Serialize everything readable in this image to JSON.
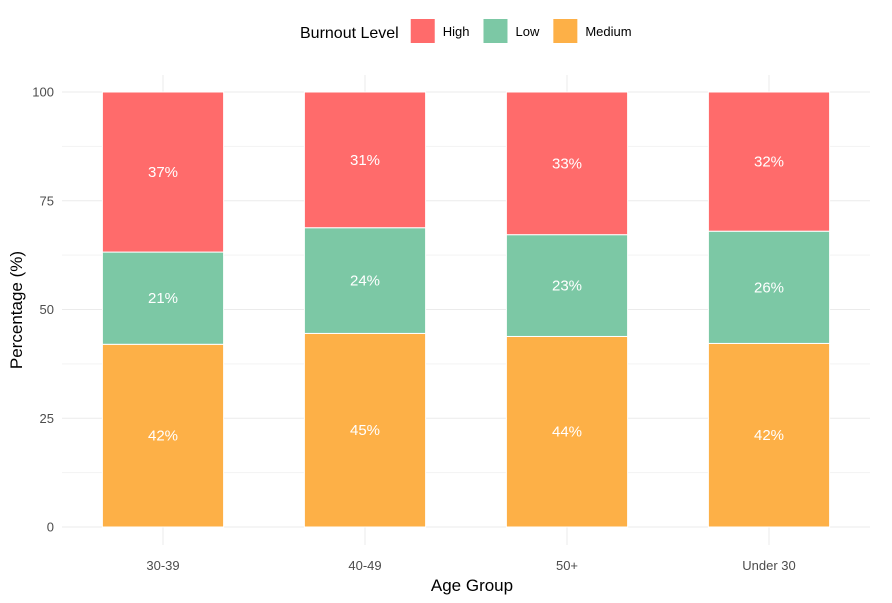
{
  "chart_data": {
    "type": "bar",
    "stacked": true,
    "categories": [
      "30-39",
      "40-49",
      "50+",
      "Under 30"
    ],
    "series": [
      {
        "name": "Medium",
        "color": "#FDB047",
        "values": [
          42,
          44.5,
          43.8,
          42.2
        ],
        "labels": [
          "42%",
          "45%",
          "44%",
          "42%"
        ]
      },
      {
        "name": "Low",
        "color": "#7CC8A5",
        "values": [
          21.2,
          24.3,
          23.4,
          25.8
        ],
        "labels": [
          "21%",
          "24%",
          "23%",
          "26%"
        ]
      },
      {
        "name": "High",
        "color": "#FF6B6B",
        "values": [
          36.8,
          31.2,
          32.8,
          32
        ],
        "labels": [
          "37%",
          "31%",
          "33%",
          "32%"
        ]
      }
    ],
    "stack_order_bottom_to_top": [
      "Medium",
      "Low",
      "High"
    ],
    "xlabel": "Age Group",
    "ylabel": "Percentage (%)",
    "ylim": [
      0,
      100
    ],
    "yticks": [
      0,
      25,
      50,
      75,
      100
    ],
    "grid": true,
    "legend": {
      "title": "Burnout Level",
      "placement": "top",
      "entries": [
        {
          "name": "High",
          "color": "#FF6B6B"
        },
        {
          "name": "Low",
          "color": "#7CC8A5"
        },
        {
          "name": "Medium",
          "color": "#FDB047"
        }
      ]
    }
  }
}
